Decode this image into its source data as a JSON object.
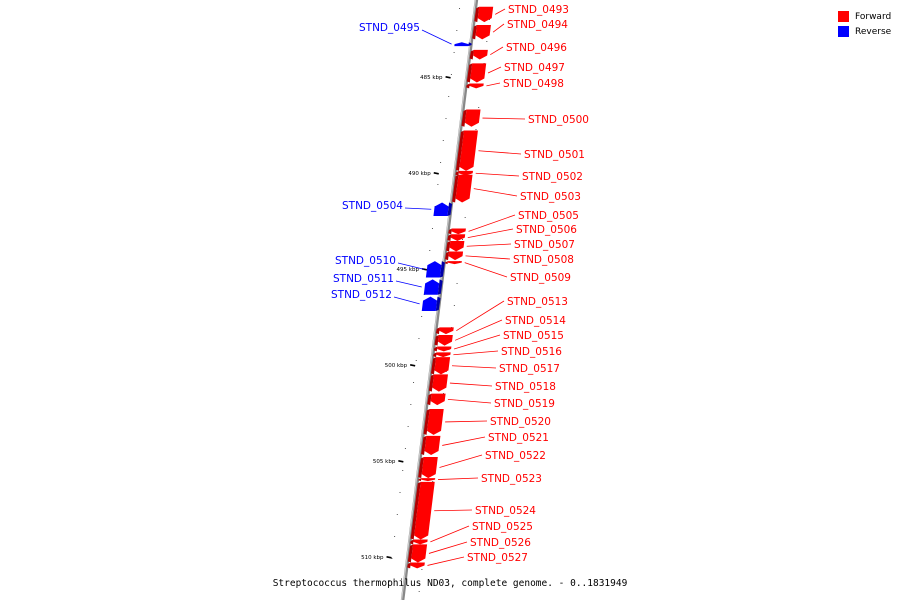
{
  "caption": "Streptococcus thermophilus ND03, complete genome. - 0..1831949",
  "legend": {
    "forward": {
      "label": "Forward",
      "color": "#ff0000"
    },
    "reverse": {
      "label": "Reverse",
      "color": "#0000ff"
    }
  },
  "colors": {
    "forward": "#ff0000",
    "forward_dark": "#b30000",
    "reverse": "#0000ff",
    "reverse_dark": "#0000a8",
    "backbone": "#888888"
  },
  "ticks": [
    {
      "label": "485 kbp",
      "kbp": 485
    },
    {
      "label": "490 kbp",
      "kbp": 490
    },
    {
      "label": "495 kbp",
      "kbp": 495
    },
    {
      "label": "500 kbp",
      "kbp": 500
    },
    {
      "label": "505 kbp",
      "kbp": 505
    },
    {
      "label": "510 kbp",
      "kbp": 510
    }
  ],
  "genes": [
    {
      "name": "STND_0493",
      "strand": "forward",
      "start": 481.35,
      "end": 482.15
    },
    {
      "name": "STND_0494",
      "strand": "forward",
      "start": 482.3,
      "end": 483.05
    },
    {
      "name": "STND_0495",
      "strand": "reverse",
      "start": 483.2,
      "end": 483.4
    },
    {
      "name": "STND_0496",
      "strand": "forward",
      "start": 483.6,
      "end": 484.1
    },
    {
      "name": "STND_0497",
      "strand": "forward",
      "start": 484.3,
      "end": 485.3
    },
    {
      "name": "STND_0498",
      "strand": "forward",
      "start": 485.35,
      "end": 485.6
    },
    {
      "name": "STND_0500",
      "strand": "forward",
      "start": 486.7,
      "end": 487.6
    },
    {
      "name": "STND_0501",
      "strand": "forward",
      "start": 487.8,
      "end": 489.9
    },
    {
      "name": "STND_0502",
      "strand": "forward",
      "start": 489.9,
      "end": 490.15
    },
    {
      "name": "STND_0503",
      "strand": "forward",
      "start": 490.1,
      "end": 491.55
    },
    {
      "name": "STND_0504",
      "strand": "reverse",
      "start": 491.55,
      "end": 492.25
    },
    {
      "name": "STND_0505",
      "strand": "forward",
      "start": 492.9,
      "end": 493.2
    },
    {
      "name": "STND_0506",
      "strand": "forward",
      "start": 493.2,
      "end": 493.55
    },
    {
      "name": "STND_0507",
      "strand": "forward",
      "start": 493.55,
      "end": 494.1
    },
    {
      "name": "STND_0508",
      "strand": "forward",
      "start": 494.1,
      "end": 494.55
    },
    {
      "name": "STND_0509",
      "strand": "forward",
      "start": 494.6,
      "end": 494.7
    },
    {
      "name": "STND_0510",
      "strand": "reverse",
      "start": 494.6,
      "end": 495.45
    },
    {
      "name": "STND_0511",
      "strand": "reverse",
      "start": 495.55,
      "end": 496.35
    },
    {
      "name": "STND_0512",
      "strand": "reverse",
      "start": 496.45,
      "end": 497.2
    },
    {
      "name": "STND_0513",
      "strand": "forward",
      "start": 498.05,
      "end": 498.4
    },
    {
      "name": "STND_0514",
      "strand": "forward",
      "start": 498.45,
      "end": 499.0
    },
    {
      "name": "STND_0515",
      "strand": "forward",
      "start": 499.05,
      "end": 499.3
    },
    {
      "name": "STND_0516",
      "strand": "forward",
      "start": 499.35,
      "end": 499.6
    },
    {
      "name": "STND_0517",
      "strand": "forward",
      "start": 499.6,
      "end": 500.5
    },
    {
      "name": "STND_0518",
      "strand": "forward",
      "start": 500.5,
      "end": 501.4
    },
    {
      "name": "STND_0519",
      "strand": "forward",
      "start": 501.5,
      "end": 502.1
    },
    {
      "name": "STND_0520",
      "strand": "forward",
      "start": 502.3,
      "end": 503.65
    },
    {
      "name": "STND_0521",
      "strand": "forward",
      "start": 503.7,
      "end": 504.7
    },
    {
      "name": "STND_0522",
      "strand": "forward",
      "start": 504.8,
      "end": 505.9
    },
    {
      "name": "STND_0523",
      "strand": "forward",
      "start": 505.9,
      "end": 506.0
    },
    {
      "name": "STND_0524",
      "strand": "forward",
      "start": 506.1,
      "end": 509.1
    },
    {
      "name": "STND_0525",
      "strand": "forward",
      "start": 509.1,
      "end": 509.35
    },
    {
      "name": "STND_0526",
      "strand": "forward",
      "start": 509.35,
      "end": 510.3
    },
    {
      "name": "STND_0527",
      "strand": "forward",
      "start": 510.3,
      "end": 510.6
    }
  ]
}
